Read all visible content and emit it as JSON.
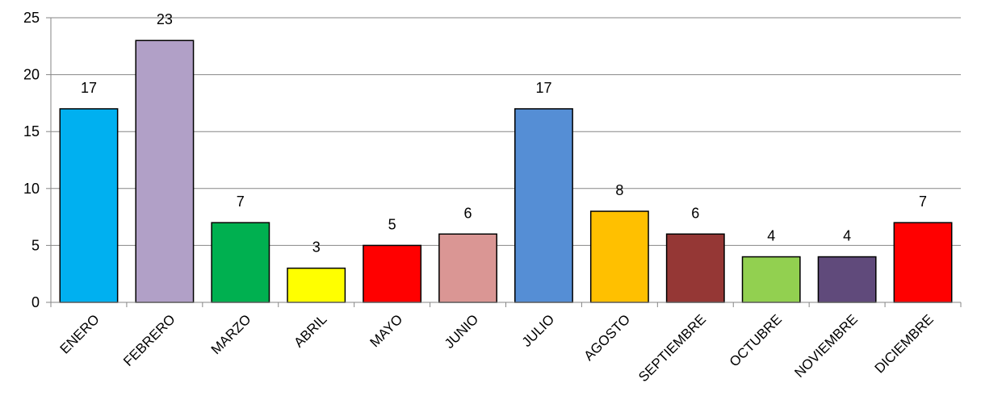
{
  "chart_data": {
    "type": "bar",
    "title": "",
    "xlabel": "",
    "ylabel": "",
    "ylim": [
      0,
      25
    ],
    "yticks": [
      "0",
      "5",
      "10",
      "15",
      "20",
      "25"
    ],
    "grid": true,
    "legend": "none",
    "categories": [
      "ENERO",
      "FEBRERO",
      "MARZO",
      "ABRIL",
      "MAYO",
      "JUNIO",
      "JULIO",
      "AGOSTO",
      "SEPTIEMBRE",
      "OCTUBRE",
      "NOVIEMBRE",
      "DICIEMBRE"
    ],
    "values": [
      17,
      23,
      7,
      3,
      5,
      6,
      17,
      8,
      6,
      4,
      4,
      7
    ],
    "data_labels": [
      "17",
      "23",
      "7",
      "3",
      "5",
      "6",
      "17",
      "8",
      "6",
      "4",
      "4",
      "7"
    ],
    "colors": [
      "#00B0F0",
      "#B1A0C7",
      "#00B050",
      "#FFFF00",
      "#FF0000",
      "#DA9694",
      "#558ED5",
      "#FFC000",
      "#953735",
      "#92D050",
      "#604A7B",
      "#FF0000"
    ]
  }
}
